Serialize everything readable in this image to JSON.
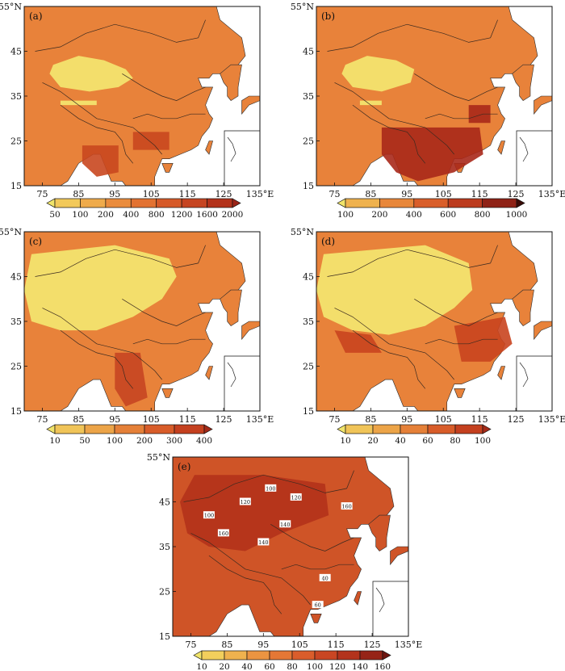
{
  "panels": [
    {
      "id": "a",
      "label": "(a)",
      "lat_ticks": [
        "55°N",
        "45",
        "35",
        "25",
        "15"
      ],
      "lon_ticks": [
        "75",
        "85",
        "95",
        "105",
        "115",
        "125",
        "135°E"
      ],
      "colorbar_labels": [
        "50",
        "100",
        "200",
        "400",
        "800",
        "1200",
        "1600",
        "2000"
      ],
      "colorbar_colors": [
        "#f0e46a",
        "#f2c95a",
        "#efab4c",
        "#ea8c3d",
        "#e27232",
        "#d65a29",
        "#c64522",
        "#b3321b",
        "#9a2317"
      ]
    },
    {
      "id": "b",
      "label": "(b)",
      "lat_ticks": [
        "55°N",
        "45",
        "35",
        "25",
        "15"
      ],
      "lon_ticks": [
        "75",
        "85",
        "95",
        "105",
        "115",
        "125",
        "135°E"
      ],
      "colorbar_labels": [
        "100",
        "200",
        "400",
        "600",
        "800",
        "1000"
      ],
      "colorbar_colors": [
        "#f0e46a",
        "#efb24e",
        "#e8873a",
        "#d95e2a",
        "#bc3b1e",
        "#8f2216",
        "#3a0b07"
      ]
    },
    {
      "id": "c",
      "label": "(c)",
      "lat_ticks": [
        "55°N",
        "45",
        "35",
        "25",
        "15"
      ],
      "lon_ticks": [
        "75",
        "85",
        "95",
        "105",
        "115",
        "125",
        "135°E"
      ],
      "colorbar_labels": [
        "10",
        "50",
        "100",
        "200",
        "300",
        "400"
      ],
      "colorbar_colors": [
        "#f0e46a",
        "#f0c458",
        "#eca448",
        "#e58038",
        "#d85c29",
        "#c4401f",
        "#a32a18"
      ]
    },
    {
      "id": "d",
      "label": "(d)",
      "lat_ticks": [
        "55°N",
        "45",
        "35",
        "25",
        "15"
      ],
      "lon_ticks": [
        "75",
        "85",
        "95",
        "105",
        "115",
        "125",
        "135°E"
      ],
      "colorbar_labels": [
        "10",
        "20",
        "40",
        "60",
        "80",
        "100"
      ],
      "colorbar_colors": [
        "#f0e46a",
        "#f0c458",
        "#eca448",
        "#e58038",
        "#d85c29",
        "#c4401f",
        "#a32a18"
      ]
    },
    {
      "id": "e",
      "label": "(e)",
      "lat_ticks": [
        "55°N",
        "45",
        "35",
        "25",
        "15"
      ],
      "lon_ticks": [
        "75",
        "85",
        "95",
        "105",
        "115",
        "125",
        "135°E"
      ],
      "colorbar_labels": [
        "10",
        "20",
        "40",
        "60",
        "80",
        "100",
        "120",
        "140",
        "160"
      ],
      "colorbar_colors": [
        "#f0e46a",
        "#f2cf5c",
        "#efb24e",
        "#eb9441",
        "#e57735",
        "#da5d2b",
        "#c94623",
        "#b3331c",
        "#962417",
        "#6e1610"
      ],
      "contour_labels": [
        "100",
        "120",
        "140",
        "160",
        "60",
        "40"
      ]
    }
  ],
  "colors": {
    "land_base": "#e8823a",
    "desert": "#f3e36e",
    "ocean": "#ffffff",
    "border": "#3a2a20"
  }
}
